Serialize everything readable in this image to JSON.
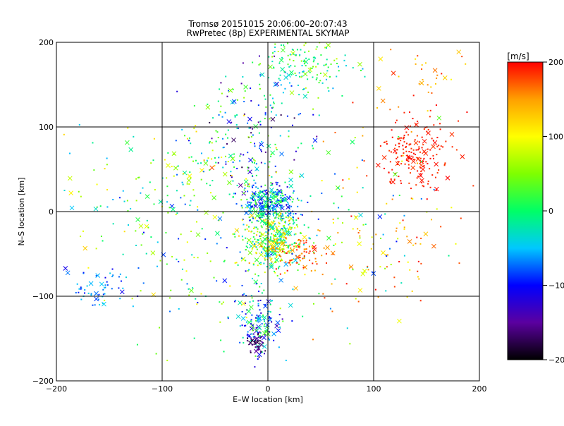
{
  "chart_data": {
    "type": "scatter",
    "title_line1": "Tromsø 20151015 20:06:00–20:07:43",
    "title_line2": "RwPretec (8p) EXPERIMENTAL SKYMAP",
    "xlabel": "E–W location [km]",
    "ylabel": "N–S location [km]",
    "xlim": [
      -200,
      200
    ],
    "ylim": [
      -200,
      200
    ],
    "xticks": [
      -200,
      -100,
      0,
      100,
      200
    ],
    "yticks": [
      -200,
      -100,
      0,
      100,
      200
    ],
    "grid": true,
    "colorbar": {
      "label": "[m/s]",
      "range": [
        -200,
        200
      ],
      "ticks": [
        200,
        100,
        0,
        -100,
        -200
      ],
      "colors": [
        "#000000",
        "#5b00a0",
        "#0000ff",
        "#00c8ff",
        "#00ff66",
        "#7fff00",
        "#ffff00",
        "#ffa000",
        "#ff0000"
      ]
    },
    "clusters": [
      {
        "cx": 0,
        "cy": 10,
        "sx": 12,
        "sy": 12,
        "n": 320,
        "vmin": -120,
        "vmax": 40
      },
      {
        "cx": 5,
        "cy": -35,
        "sx": 14,
        "sy": 16,
        "n": 380,
        "vmin": -60,
        "vmax": 140
      },
      {
        "cx": 30,
        "cy": -50,
        "sx": 12,
        "sy": 10,
        "n": 80,
        "vmin": 140,
        "vmax": 200
      },
      {
        "cx": -10,
        "cy": -130,
        "sx": 12,
        "sy": 18,
        "n": 140,
        "vmin": -140,
        "vmax": 40
      },
      {
        "cx": -12,
        "cy": -158,
        "sx": 4,
        "sy": 8,
        "n": 45,
        "vmin": -190,
        "vmax": -140
      },
      {
        "cx": -10,
        "cy": 100,
        "sx": 25,
        "sy": 35,
        "n": 160,
        "vmin": -180,
        "vmax": 60
      },
      {
        "cx": 35,
        "cy": 170,
        "sx": 22,
        "sy": 18,
        "n": 150,
        "vmin": -60,
        "vmax": 80
      },
      {
        "cx": 140,
        "cy": 65,
        "sx": 17,
        "sy": 20,
        "n": 190,
        "vmin": 180,
        "vmax": 200
      },
      {
        "cx": -60,
        "cy": 60,
        "sx": 30,
        "sy": 30,
        "n": 100,
        "vmin": -80,
        "vmax": 120
      },
      {
        "cx": -160,
        "cy": -90,
        "sx": 18,
        "sy": 12,
        "n": 55,
        "vmin": -110,
        "vmax": -40
      },
      {
        "cx": -150,
        "cy": 10,
        "sx": 40,
        "sy": 40,
        "n": 60,
        "vmin": -60,
        "vmax": 140
      },
      {
        "cx": 60,
        "cy": -20,
        "sx": 50,
        "sy": 60,
        "n": 150,
        "vmin": -100,
        "vmax": 200
      },
      {
        "cx": -70,
        "cy": -40,
        "sx": 40,
        "sy": 50,
        "n": 130,
        "vmin": -120,
        "vmax": 120
      },
      {
        "cx": 130,
        "cy": -40,
        "sx": 40,
        "sy": 40,
        "n": 60,
        "vmin": 80,
        "vmax": 200
      },
      {
        "cx": 150,
        "cy": 150,
        "sx": 30,
        "sy": 25,
        "n": 40,
        "vmin": 100,
        "vmax": 200
      }
    ]
  }
}
